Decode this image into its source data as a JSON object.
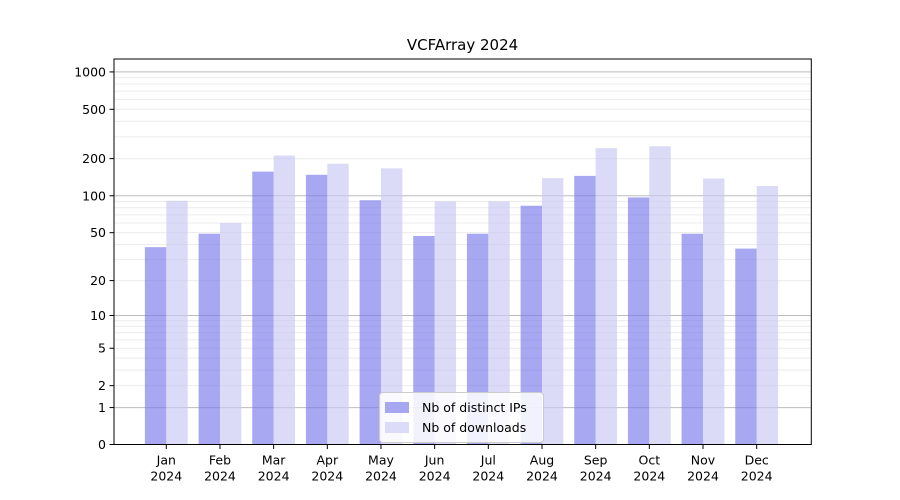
{
  "title": "VCFArray 2024",
  "legend": {
    "entries": [
      {
        "label": "Nb of distinct IPs",
        "color": "#a7a7f1"
      },
      {
        "label": "Nb of downloads",
        "color": "#dcdcf8"
      }
    ],
    "position": "lower center"
  },
  "colors": {
    "ips_bar_fill": "rgba(120,120,235,0.65)",
    "downloads_bar_fill": "rgba(200,200,245,0.65)",
    "ips_bar_solid": "#a7a7f1",
    "downloads_bar_solid": "#dcdcf8",
    "grid_major": "#bdbdbd",
    "grid_minor": "#ececec",
    "axis": "#000000",
    "text": "#000000",
    "background": "#ffffff",
    "legend_border": "#cccccc"
  },
  "chart_data": {
    "type": "bar",
    "title": "VCFArray 2024",
    "categories": [
      "Jan",
      "Feb",
      "Mar",
      "Apr",
      "May",
      "Jun",
      "Jul",
      "Aug",
      "Sep",
      "Oct",
      "Nov",
      "Dec"
    ],
    "category_year": "2024",
    "series": [
      {
        "name": "Nb of distinct IPs",
        "values": [
          38,
          49,
          157,
          148,
          92,
          47,
          49,
          83,
          145,
          97,
          49,
          37
        ],
        "color": "#a7a7f1",
        "fill": "rgba(120,120,235,0.65)"
      },
      {
        "name": "Nb of downloads",
        "values": [
          91,
          60,
          212,
          182,
          167,
          90,
          90,
          139,
          243,
          252,
          138,
          120
        ],
        "color": "#dcdcf8",
        "fill": "rgba(200,200,245,0.65)"
      }
    ],
    "xlabel": "",
    "ylabel": "",
    "y_scale": "log1p",
    "y_ticks": [
      0,
      1,
      2,
      5,
      10,
      20,
      50,
      100,
      200,
      500,
      1000
    ],
    "y_minor_grid": [
      2,
      3,
      4,
      5,
      6,
      7,
      8,
      9,
      20,
      30,
      40,
      50,
      60,
      70,
      80,
      90,
      200,
      300,
      400,
      500,
      600,
      700,
      800,
      900
    ],
    "y_major_grid": [
      1,
      10,
      100,
      1000
    ],
    "ylim": [
      0,
      1280
    ],
    "grid": "horizontal",
    "legend_position": "lower center"
  }
}
